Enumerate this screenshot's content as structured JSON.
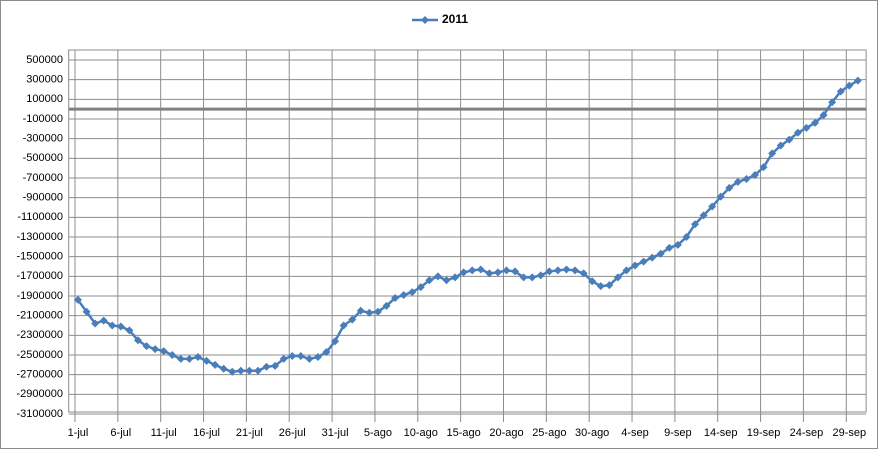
{
  "chart_data": {
    "type": "line",
    "categories": [
      "1-jul",
      null,
      null,
      null,
      null,
      "6-jul",
      null,
      null,
      null,
      null,
      "11-jul",
      null,
      null,
      null,
      null,
      "16-jul",
      null,
      null,
      null,
      null,
      "21-jul",
      null,
      null,
      null,
      null,
      "26-jul",
      null,
      null,
      null,
      null,
      "31-jul",
      null,
      null,
      null,
      null,
      "5-ago",
      null,
      null,
      null,
      null,
      "10-ago",
      null,
      null,
      null,
      null,
      "15-ago",
      null,
      null,
      null,
      null,
      "20-ago",
      null,
      null,
      null,
      null,
      "25-ago",
      null,
      null,
      null,
      null,
      "30-ago",
      null,
      null,
      null,
      null,
      "4-sep",
      null,
      null,
      null,
      null,
      "9-sep",
      null,
      null,
      null,
      null,
      "14-sep",
      null,
      null,
      null,
      null,
      "19-sep",
      null,
      null,
      null,
      null,
      "24-sep",
      null,
      null,
      null,
      null,
      "29-sep",
      null
    ],
    "series": [
      {
        "name": "2011",
        "color": "#4a7ebb",
        "values": [
          -1940000,
          -2060000,
          -2180000,
          -2150000,
          -2200000,
          -2210000,
          -2250000,
          -2350000,
          -2410000,
          -2440000,
          -2460000,
          -2500000,
          -2540000,
          -2540000,
          -2520000,
          -2560000,
          -2600000,
          -2640000,
          -2670000,
          -2660000,
          -2660000,
          -2660000,
          -2620000,
          -2610000,
          -2540000,
          -2510000,
          -2510000,
          -2540000,
          -2520000,
          -2470000,
          -2360000,
          -2200000,
          -2140000,
          -2050000,
          -2070000,
          -2060000,
          -2000000,
          -1920000,
          -1890000,
          -1860000,
          -1810000,
          -1740000,
          -1700000,
          -1740000,
          -1710000,
          -1660000,
          -1640000,
          -1630000,
          -1670000,
          -1660000,
          -1640000,
          -1650000,
          -1710000,
          -1710000,
          -1690000,
          -1650000,
          -1640000,
          -1630000,
          -1640000,
          -1670000,
          -1750000,
          -1800000,
          -1790000,
          -1710000,
          -1640000,
          -1590000,
          -1550000,
          -1510000,
          -1470000,
          -1410000,
          -1380000,
          -1300000,
          -1170000,
          -1080000,
          -990000,
          -890000,
          -800000,
          -740000,
          -710000,
          -670000,
          -590000,
          -450000,
          -370000,
          -310000,
          -240000,
          -190000,
          -140000,
          -60000,
          70000,
          180000,
          240000,
          290000
        ]
      }
    ],
    "ylim": [
      -3100000,
      500000
    ],
    "yticks": [
      500000,
      300000,
      100000,
      -100000,
      -300000,
      -500000,
      -700000,
      -900000,
      -1100000,
      -1300000,
      -1500000,
      -1700000,
      -1900000,
      -2100000,
      -2300000,
      -2500000,
      -2700000,
      -2900000,
      -3100000
    ],
    "grid": true,
    "legend": "top"
  }
}
